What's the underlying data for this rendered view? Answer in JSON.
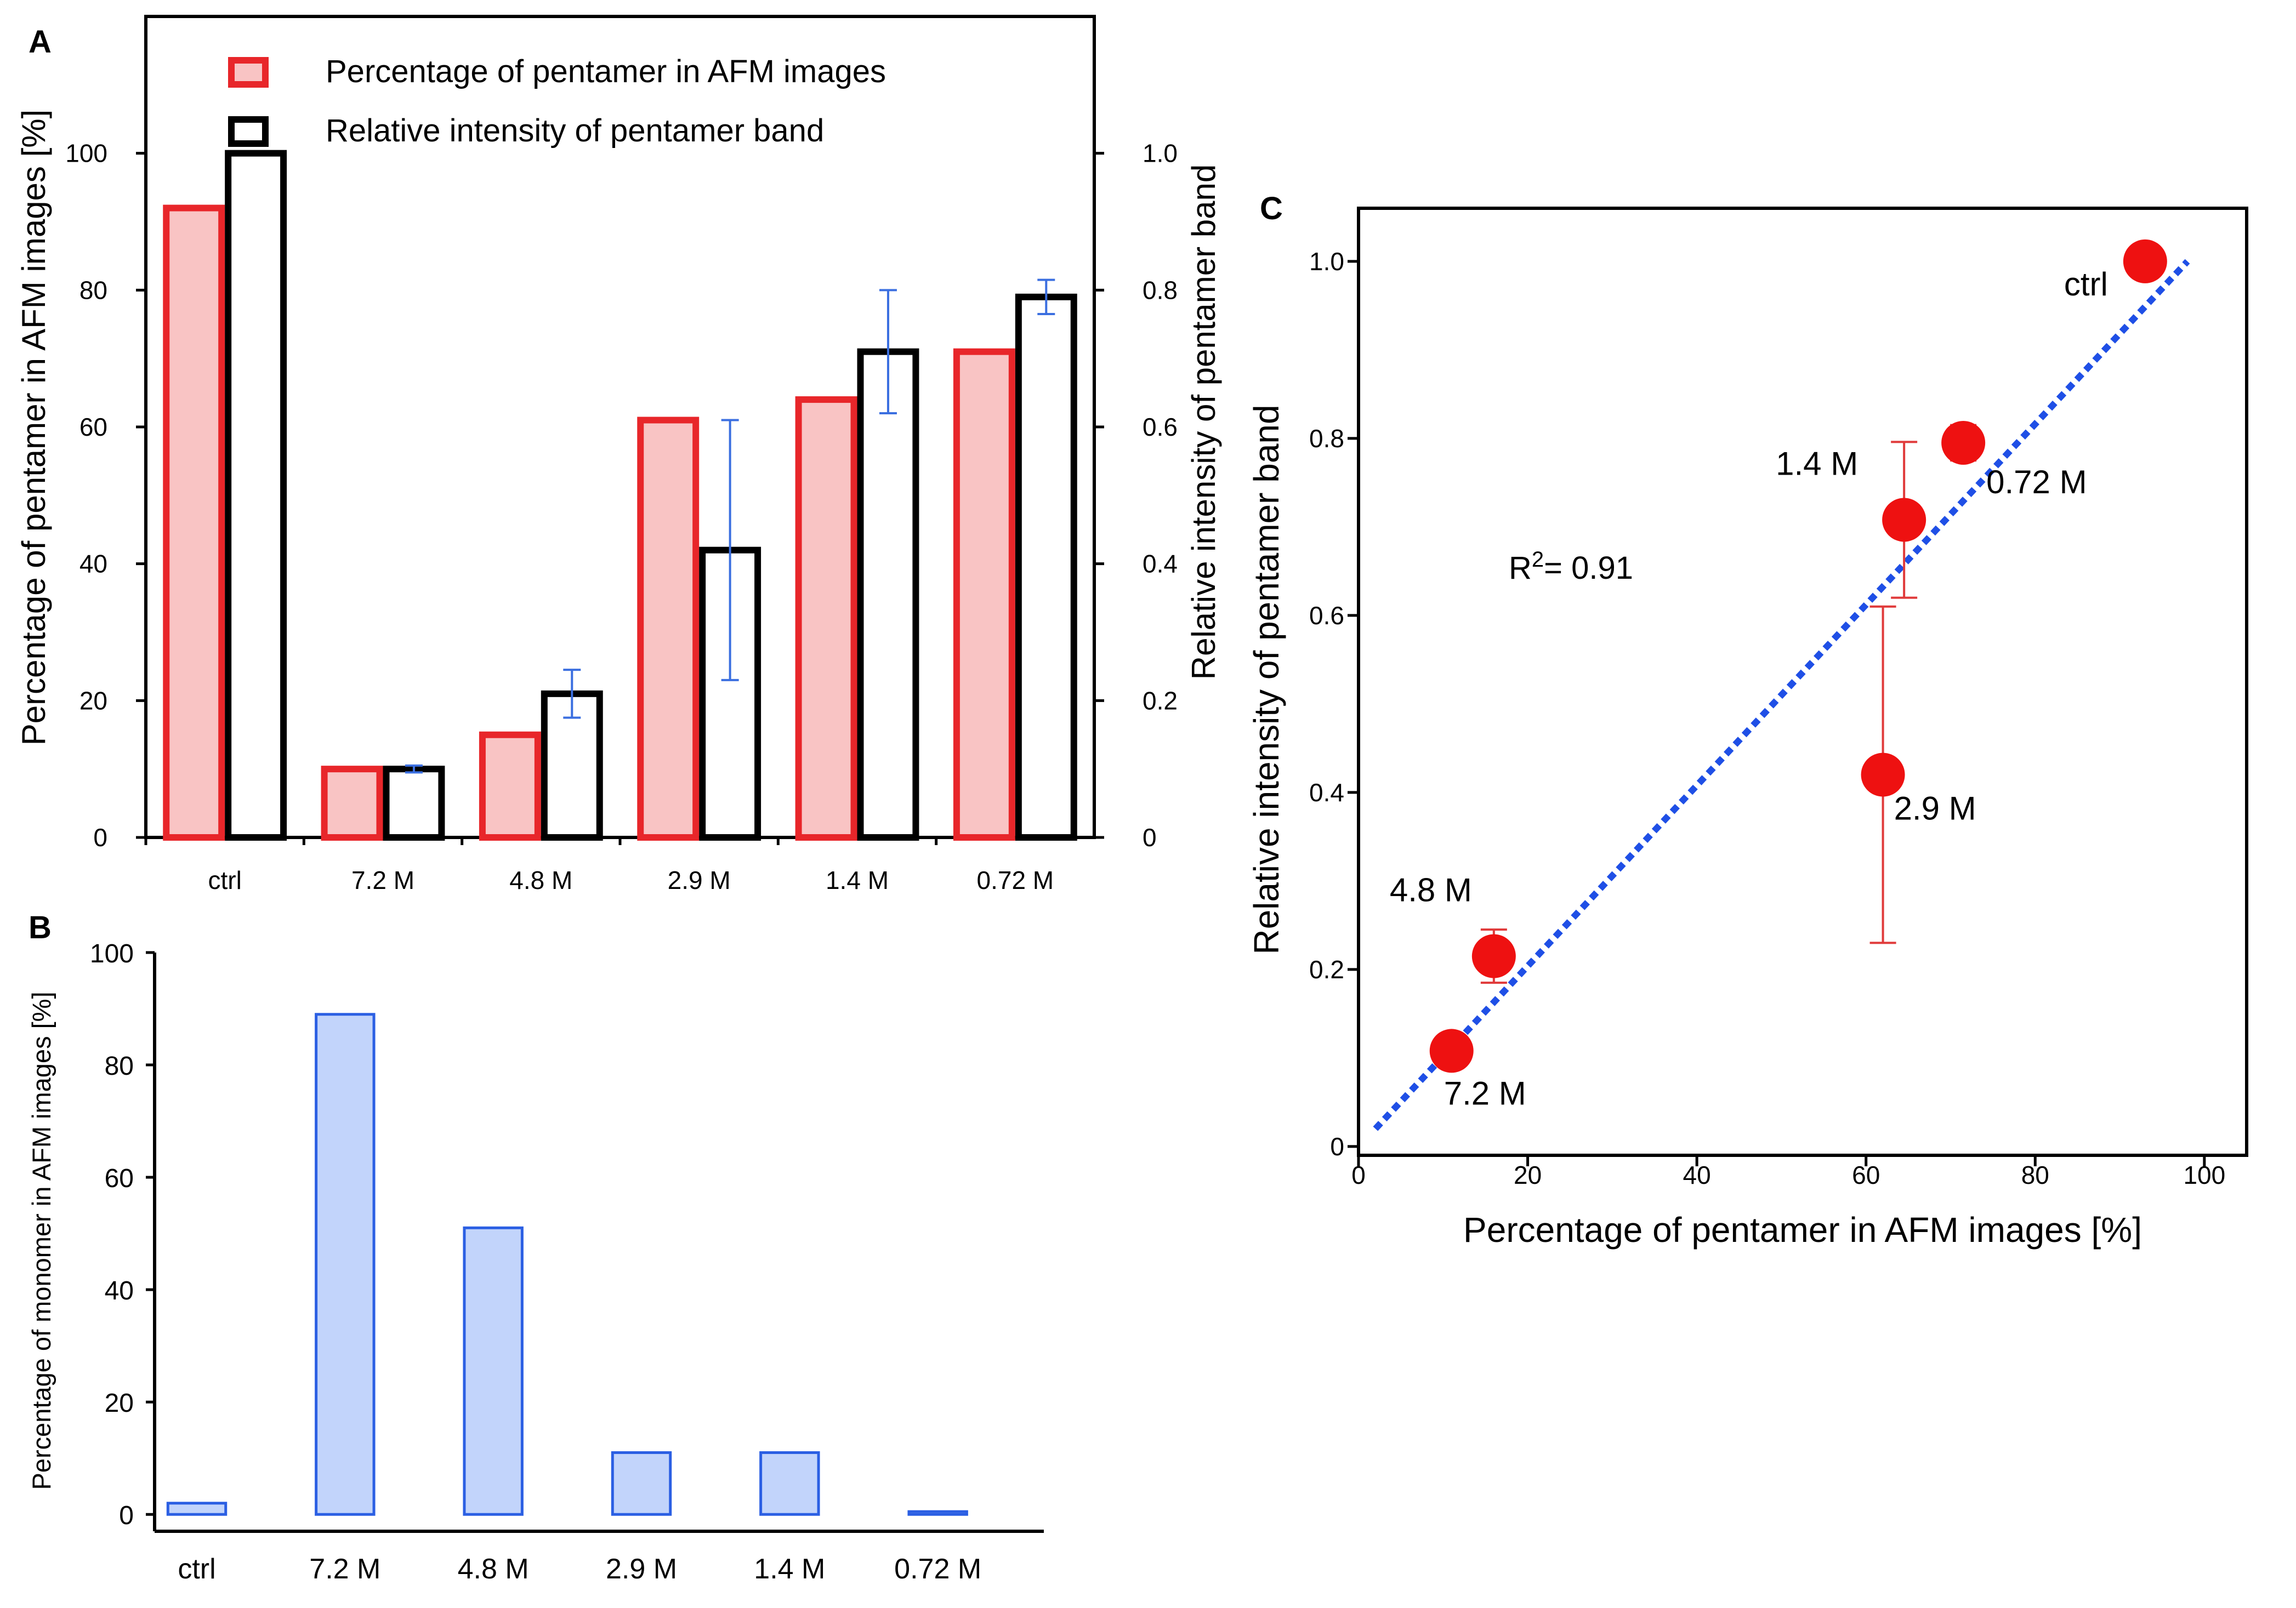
{
  "chart_data": [
    {
      "panel_label": "A",
      "type": "bar",
      "categories": [
        "ctrl",
        "7.2 M",
        "4.8 M",
        "2.9 M",
        "1.4 M",
        "0.72 M"
      ],
      "series": [
        {
          "name": "Percentage of pentamer in AFM images",
          "axis": "left",
          "values": [
            92,
            10,
            15,
            61,
            64,
            71
          ],
          "fill": "#f9c4c4",
          "stroke": "#e8262a"
        },
        {
          "name": "Relative intensity of pentamer band",
          "axis": "right",
          "values": [
            1.0,
            0.1,
            0.21,
            0.42,
            0.71,
            0.79
          ],
          "error": [
            0.0,
            0.005,
            0.035,
            0.19,
            0.09,
            0.025
          ],
          "fill": "#ffffff",
          "stroke": "#000000",
          "error_color": "#3b6fe0"
        }
      ],
      "ylabel": "Percentage of pentamer in AFM images [%]",
      "ylim": [
        0,
        120
      ],
      "yticks": [
        "0",
        "20",
        "40",
        "60",
        "80",
        "100"
      ],
      "y2label": "Relative intensity of pentamer band",
      "y2lim": [
        0,
        1.2
      ],
      "y2ticks": [
        "0",
        "0.2",
        "0.4",
        "0.6",
        "0.8",
        "1.0"
      ],
      "legend_position": "top"
    },
    {
      "panel_label": "B",
      "type": "bar",
      "categories": [
        "ctrl",
        "7.2 M",
        "4.8 M",
        "2.9 M",
        "1.4 M",
        "0.72 M"
      ],
      "series": [
        {
          "values": [
            2,
            89,
            51,
            11,
            11,
            0.5
          ],
          "fill": "#c2d4fb",
          "stroke": "#2b5fe3"
        }
      ],
      "ylabel": "Percentage of monomer in AFM images [%]",
      "ylim": [
        -3,
        100
      ],
      "yticks": [
        "0",
        "20",
        "40",
        "60",
        "80",
        "100"
      ]
    },
    {
      "panel_label": "C",
      "type": "scatter",
      "points": [
        {
          "label": "ctrl",
          "x": 93,
          "y": 1.0,
          "yerr": 0.0
        },
        {
          "label": "7.2 M",
          "x": 11,
          "y": 0.108,
          "yerr": 0.0
        },
        {
          "label": "4.8 M",
          "x": 16,
          "y": 0.215,
          "yerr": 0.03
        },
        {
          "label": "2.9 M",
          "x": 62,
          "y": 0.42,
          "yerr": 0.19
        },
        {
          "label": "1.4 M",
          "x": 64.5,
          "y": 0.708,
          "yerr": 0.088
        },
        {
          "label": "0.72 M",
          "x": 71.5,
          "y": 0.795,
          "yerr": 0.02
        }
      ],
      "fit_line": {
        "x": [
          2,
          98
        ],
        "y": [
          0.02,
          1.0
        ],
        "color": "#1f4fe6",
        "style": "dotted"
      },
      "annotation": {
        "r2_prefix": "R",
        "r2_sup": "2",
        "r2_value": "= 0.91"
      },
      "xlabel": "Percentage of pentamer in AFM images [%]",
      "ylabel": "Relative intensity of pentamer band",
      "xlim": [
        0,
        105
      ],
      "ylim": [
        -0.01,
        1.06
      ],
      "xticks": [
        "0",
        "20",
        "40",
        "60",
        "80",
        "100"
      ],
      "yticks": [
        "0",
        "0.2",
        "0.4",
        "0.6",
        "0.8",
        "1.0"
      ],
      "point_color": "#ee1111",
      "error_color": "#e03a3a"
    }
  ]
}
